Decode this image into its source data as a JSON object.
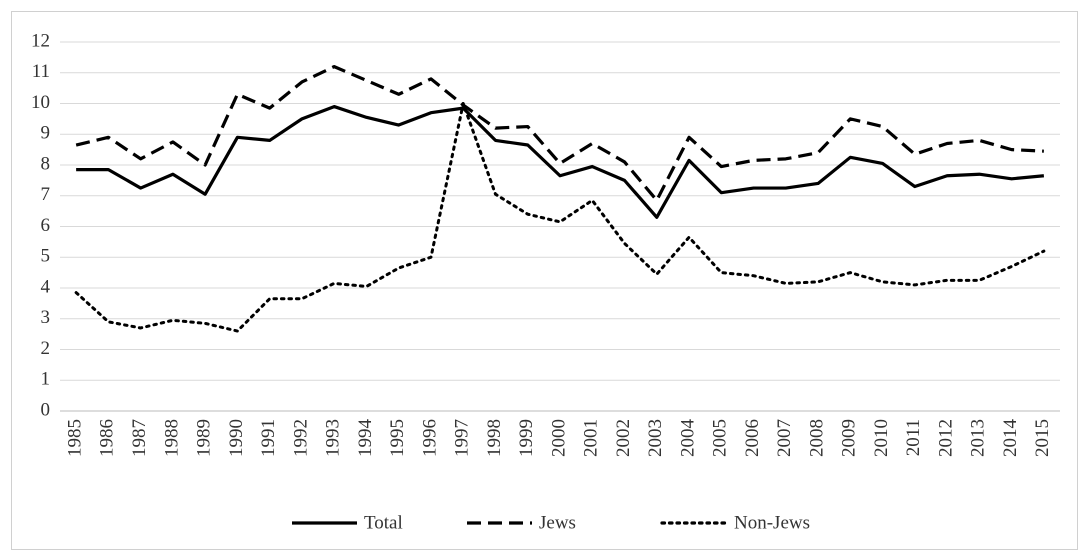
{
  "chart_data": {
    "type": "line",
    "categories": [
      "1985",
      "1986",
      "1987",
      "1988",
      "1989",
      "1990",
      "1991",
      "1992",
      "1993",
      "1994",
      "1995",
      "1996",
      "1997",
      "1998",
      "1999",
      "2000",
      "2001",
      "2002",
      "2003",
      "2004",
      "2005",
      "2006",
      "2007",
      "2008",
      "2009",
      "2010",
      "2011",
      "2012",
      "2013",
      "2014",
      "2015"
    ],
    "series": [
      {
        "name": "Total",
        "color": "#000000",
        "dash": "solid",
        "values": [
          7.85,
          7.85,
          7.25,
          7.7,
          7.05,
          8.9,
          8.8,
          9.5,
          9.9,
          9.55,
          9.3,
          9.7,
          9.85,
          8.8,
          8.65,
          7.65,
          7.95,
          7.5,
          6.3,
          8.15,
          7.1,
          7.25,
          7.25,
          7.4,
          8.25,
          8.05,
          7.3,
          7.65,
          7.7,
          7.55,
          7.65
        ]
      },
      {
        "name": "Jews",
        "color": "#000000",
        "dash": "dashed",
        "values": [
          8.65,
          8.9,
          8.2,
          8.75,
          8.0,
          10.3,
          9.85,
          10.7,
          11.2,
          10.75,
          10.3,
          10.8,
          9.95,
          9.2,
          9.25,
          8.05,
          8.7,
          8.1,
          6.85,
          8.9,
          7.95,
          8.15,
          8.2,
          8.4,
          9.5,
          9.25,
          8.35,
          8.7,
          8.8,
          8.5,
          8.45
        ]
      },
      {
        "name": "Non-Jews",
        "color": "#000000",
        "dash": "dotted",
        "values": [
          3.85,
          2.9,
          2.7,
          2.95,
          2.85,
          2.6,
          3.65,
          3.65,
          4.15,
          4.05,
          4.65,
          5.0,
          10.0,
          7.05,
          6.4,
          6.15,
          6.85,
          5.45,
          4.45,
          5.65,
          4.5,
          4.4,
          4.15,
          4.2,
          4.5,
          4.2,
          4.1,
          4.25,
          4.25,
          4.7,
          5.2
        ]
      }
    ],
    "ylim": [
      0,
      12
    ],
    "yticks": [
      0,
      1,
      2,
      3,
      4,
      5,
      6,
      7,
      8,
      9,
      10,
      11,
      12
    ],
    "grid": true,
    "legend": "bottom"
  }
}
